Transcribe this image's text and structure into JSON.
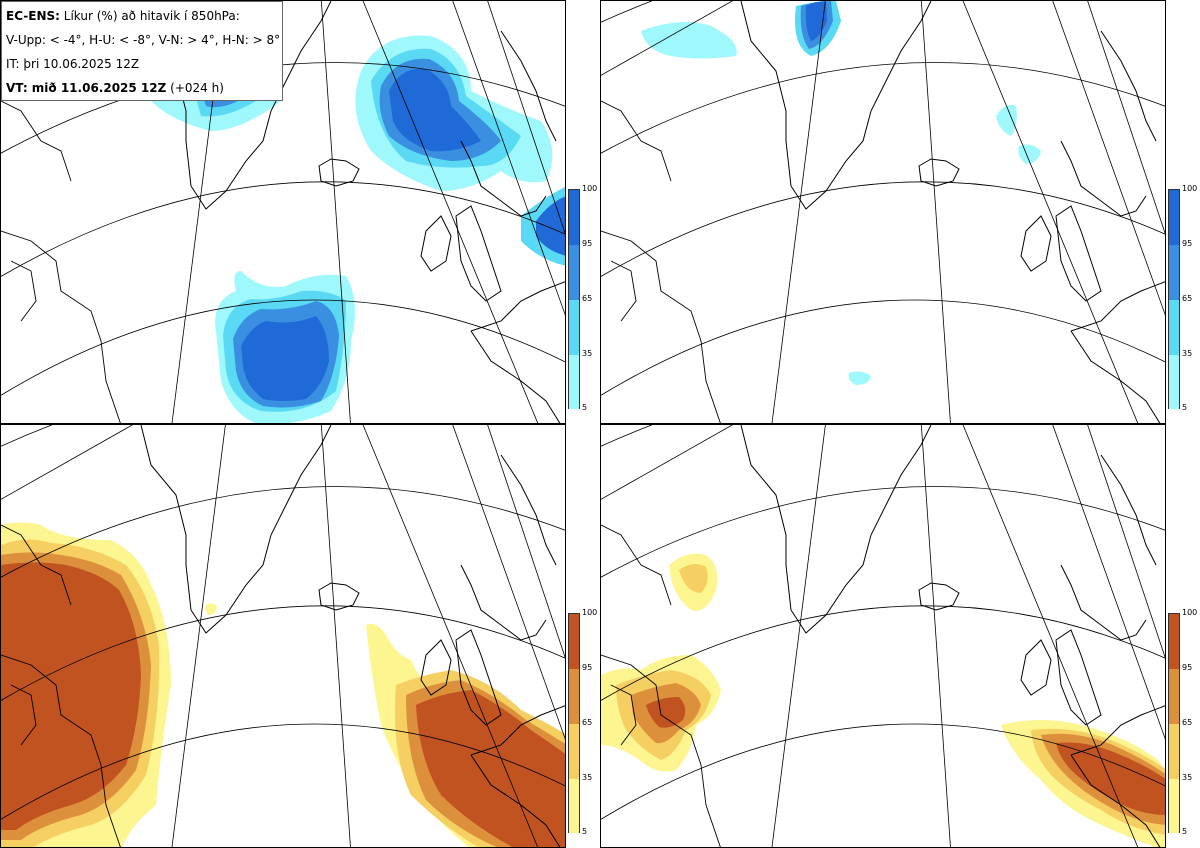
{
  "header": {
    "model": "EC-ENS:",
    "title": "Líkur (%) að hitavik í 850hPa:",
    "thresholds": "V-Upp: < -4°, H-U: < -8°, V-N: > 4°, H-N: > 8°",
    "init_time": "IT: þri 10.06.2025 12Z",
    "valid_label": "VT: mið 11.06.2025 12Z",
    "lead": "(+024 h)"
  },
  "legend_ticks": [
    "100",
    "95",
    "65",
    "35",
    "5"
  ],
  "colors": {
    "cold_5": "#9ff8fb",
    "cold_35": "#59d9f3",
    "cold_65": "#3a8fe0",
    "cold_95": "#1f6ad6",
    "warm_5": "#fdf58f",
    "warm_35": "#f5cf61",
    "warm_65": "#dd903c",
    "warm_95": "#c15321",
    "grid": "#000000",
    "coast": "#000000"
  },
  "panels": [
    {
      "id": "V-Upp",
      "scheme": "cold"
    },
    {
      "id": "H-U",
      "scheme": "cold"
    },
    {
      "id": "V-N",
      "scheme": "warm"
    },
    {
      "id": "H-N",
      "scheme": "warm"
    }
  ]
}
